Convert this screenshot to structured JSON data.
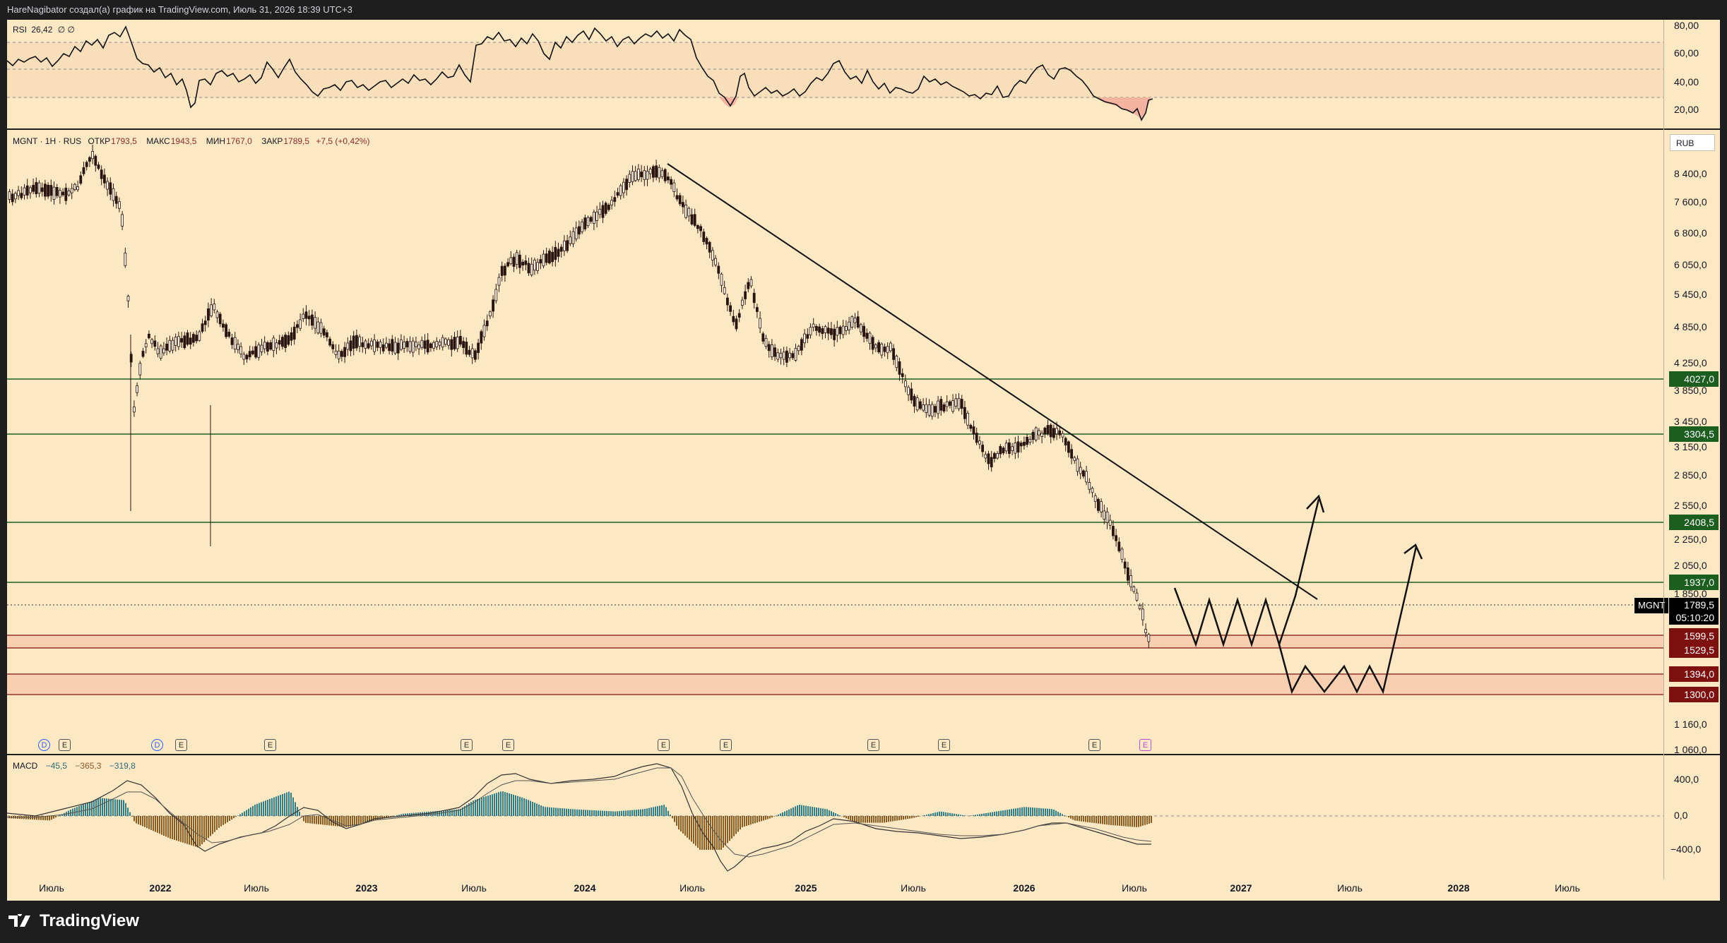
{
  "header": {
    "caption": "HareNagibator создал(а) график на TradingView.com, Июль 31, 2026 18:39 UTC+3"
  },
  "rsi": {
    "legend_name": "RSI",
    "legend_value": "26,42",
    "legend_extra": "∅ ∅",
    "scale": [
      "80,00",
      "60,00",
      "40,00",
      "20,00"
    ]
  },
  "main": {
    "symbol_line": "MGNT · 1H · RUS",
    "ohlc": {
      "open_label": "ОТКР",
      "open": "1793,5",
      "high_label": "МАКС",
      "high": "1943,5",
      "low_label": "МИН",
      "low": "1767,0",
      "close_label": "ЗАКР",
      "close": "1789,5",
      "change": "+7,5 (+0,42%)"
    },
    "currency": "RUB",
    "price_scale": [
      "8 400,0",
      "7 600,0",
      "6 800,0",
      "6 050,0",
      "5 450,0",
      "4 850,0",
      "4 250,0",
      "3 850,0",
      "3 450,0",
      "3 150,0",
      "2 850,0",
      "2 550,0",
      "2 250,0",
      "2 050,0",
      "1 850,0",
      "1 160,0",
      "1 060,0"
    ],
    "levels": {
      "l4027": "4027,0",
      "l3304": "3304,5",
      "l2408": "2408,5",
      "l1937": "1937,0",
      "l1599": "1599,5",
      "l1529": "1529,5",
      "l1394": "1394,0",
      "l1300": "1300,0"
    },
    "current": {
      "symbol": "MGNT",
      "price": "1789,5",
      "countdown": "05:10:20"
    },
    "events": [
      "D",
      "E",
      "D",
      "E",
      "E",
      "E",
      "E",
      "E",
      "E",
      "E",
      "E",
      "E",
      "E"
    ]
  },
  "macd": {
    "legend_name": "MACD",
    "v1": "−45,5",
    "v2": "−365,3",
    "v3": "−319,8",
    "scale": [
      "400,0",
      "0,0",
      "−400,0"
    ]
  },
  "time_axis": [
    "Июль",
    "2022",
    "Июль",
    "2023",
    "Июль",
    "2024",
    "Июль",
    "2025",
    "Июль",
    "2026",
    "Июль",
    "2027",
    "Июль",
    "2028",
    "Июль"
  ],
  "footer": {
    "brand": "TradingView"
  },
  "colors": {
    "background": "#fde8c4",
    "level_green": "#1b5e20",
    "level_red": "#7f1010",
    "rsi_band": "#f8dfbe"
  }
}
